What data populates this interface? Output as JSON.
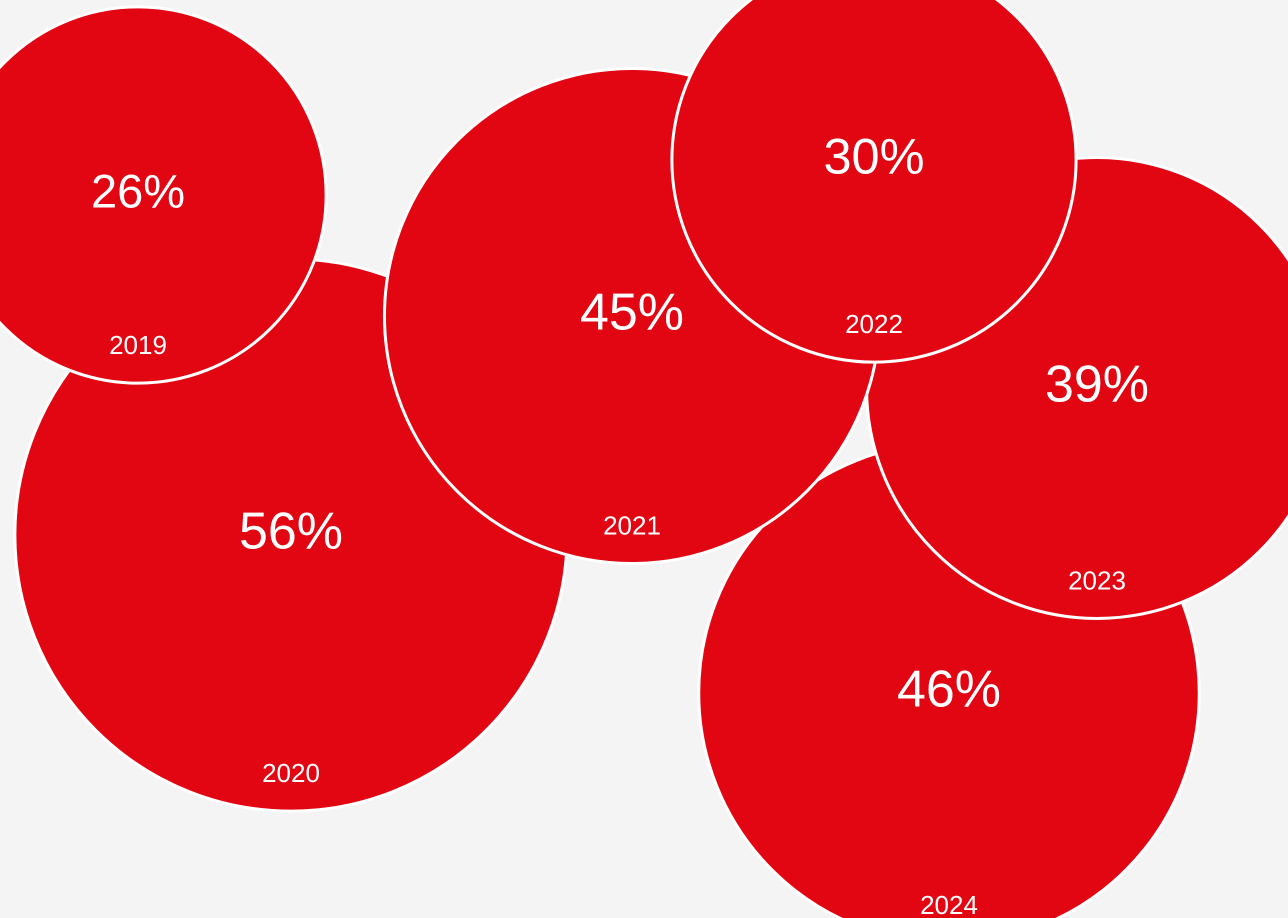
{
  "chart_data": {
    "type": "bubble",
    "categories": [
      "2019",
      "2020",
      "2021",
      "2022",
      "2023",
      "2024"
    ],
    "values": [
      26,
      56,
      45,
      30,
      39,
      46
    ],
    "value_labels": [
      "26%",
      "56%",
      "45%",
      "30%",
      "39%",
      "46%"
    ],
    "unit": "%",
    "colors": {
      "bubble": "#e20613",
      "outline": "#ffffff",
      "text": "#ffffff",
      "background": "#f4f4f4"
    }
  }
}
